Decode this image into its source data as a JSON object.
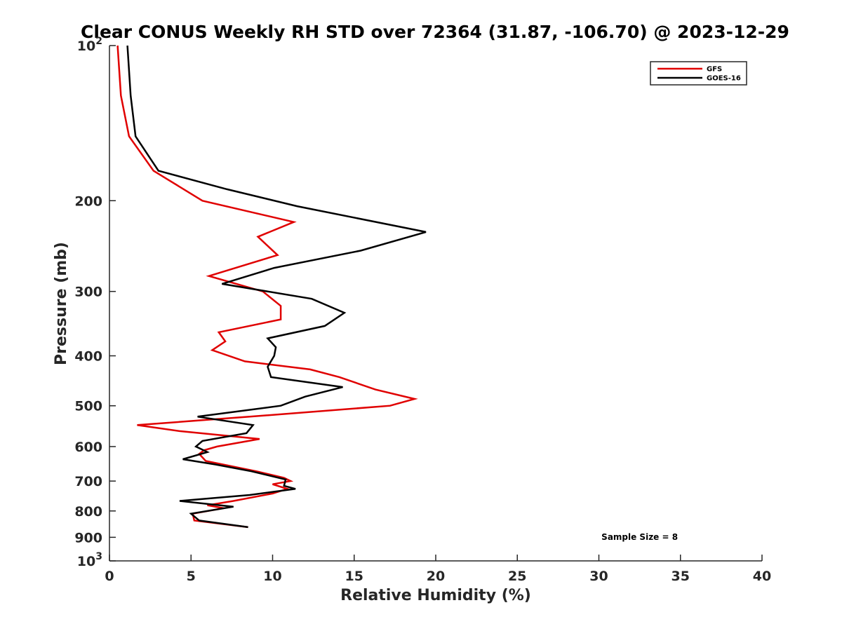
{
  "chart_data": {
    "type": "line",
    "title": "Clear CONUS Weekly RH STD over 72364 (31.87, -106.70) @ 2023-12-29",
    "xlabel": "Relative Humidity (%)",
    "ylabel": "Pressure (mb)",
    "xlim": [
      0,
      40
    ],
    "ylim": [
      100,
      1000
    ],
    "y_scale": "log",
    "y_reversed": true,
    "grid": false,
    "legend_position": "top-right",
    "x_ticks": [
      "0",
      "5",
      "10",
      "15",
      "20",
      "25",
      "30",
      "35",
      "40"
    ],
    "y_ticks": [
      {
        "value": 100,
        "label": "10",
        "sup": "2"
      },
      {
        "value": 200,
        "label": "200",
        "sup": ""
      },
      {
        "value": 300,
        "label": "300",
        "sup": ""
      },
      {
        "value": 400,
        "label": "400",
        "sup": ""
      },
      {
        "value": 500,
        "label": "500",
        "sup": ""
      },
      {
        "value": 600,
        "label": "600",
        "sup": ""
      },
      {
        "value": 700,
        "label": "700",
        "sup": ""
      },
      {
        "value": 800,
        "label": "800",
        "sup": ""
      },
      {
        "value": 900,
        "label": "900",
        "sup": ""
      },
      {
        "value": 1000,
        "label": "10",
        "sup": "3"
      }
    ],
    "series": [
      {
        "name": "GFS",
        "color": "#e00000",
        "points": [
          [
            0.5,
            100
          ],
          [
            0.7,
            125
          ],
          [
            1.2,
            150
          ],
          [
            2.7,
            175
          ],
          [
            5.7,
            200
          ],
          [
            11.3,
            220
          ],
          [
            9.1,
            235
          ],
          [
            10.3,
            255
          ],
          [
            6.1,
            280
          ],
          [
            9.4,
            300
          ],
          [
            10.5,
            320
          ],
          [
            10.5,
            340
          ],
          [
            6.7,
            360
          ],
          [
            7.1,
            375
          ],
          [
            6.3,
            390
          ],
          [
            8.3,
            410
          ],
          [
            12.3,
            425
          ],
          [
            14.1,
            440
          ],
          [
            16.3,
            465
          ],
          [
            18.7,
            485
          ],
          [
            17.2,
            500
          ],
          [
            8.6,
            525
          ],
          [
            1.7,
            545
          ],
          [
            4.3,
            560
          ],
          [
            9.2,
            580
          ],
          [
            6.6,
            600
          ],
          [
            5.8,
            610
          ],
          [
            5.5,
            620
          ],
          [
            5.9,
            640
          ],
          [
            9.0,
            670
          ],
          [
            10.7,
            690
          ],
          [
            11.1,
            700
          ],
          [
            10.0,
            710
          ],
          [
            10.9,
            725
          ],
          [
            10.0,
            740
          ],
          [
            7.6,
            765
          ],
          [
            6.0,
            780
          ],
          [
            7.0,
            790
          ],
          [
            5.1,
            810
          ],
          [
            5.2,
            835
          ],
          [
            8.5,
            860
          ]
        ]
      },
      {
        "name": "GOES-16",
        "color": "#000000",
        "points": [
          [
            1.1,
            100
          ],
          [
            1.3,
            125
          ],
          [
            1.6,
            150
          ],
          [
            3.0,
            175
          ],
          [
            7.2,
            190
          ],
          [
            11.5,
            205
          ],
          [
            19.4,
            230
          ],
          [
            15.4,
            250
          ],
          [
            10.1,
            270
          ],
          [
            6.9,
            290
          ],
          [
            12.4,
            310
          ],
          [
            14.4,
            330
          ],
          [
            13.2,
            350
          ],
          [
            9.7,
            370
          ],
          [
            10.2,
            385
          ],
          [
            10.1,
            400
          ],
          [
            9.7,
            420
          ],
          [
            9.9,
            440
          ],
          [
            14.3,
            460
          ],
          [
            12.0,
            480
          ],
          [
            10.5,
            500
          ],
          [
            5.4,
            525
          ],
          [
            8.8,
            545
          ],
          [
            8.4,
            565
          ],
          [
            5.7,
            585
          ],
          [
            5.3,
            600
          ],
          [
            6.0,
            615
          ],
          [
            4.5,
            635
          ],
          [
            6.5,
            650
          ],
          [
            8.7,
            670
          ],
          [
            10.8,
            695
          ],
          [
            10.7,
            715
          ],
          [
            11.4,
            725
          ],
          [
            8.6,
            745
          ],
          [
            4.3,
            765
          ],
          [
            7.6,
            785
          ],
          [
            5.0,
            810
          ],
          [
            5.5,
            835
          ],
          [
            8.5,
            860
          ]
        ]
      }
    ],
    "annotations": [
      {
        "text": "Sample Size = 8",
        "x": 32.5,
        "y": 910
      }
    ]
  }
}
